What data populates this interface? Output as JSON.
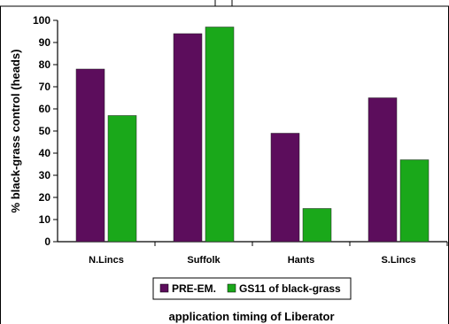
{
  "chart_data": {
    "type": "bar",
    "categories": [
      "N.Lincs",
      "Suffolk",
      "Hants",
      "S.Lincs"
    ],
    "series": [
      {
        "name": "PRE-EM.",
        "values": [
          78,
          94,
          49,
          65
        ],
        "color": "#5c0d5c"
      },
      {
        "name": "GS11 of black-grass",
        "values": [
          57,
          97,
          15,
          37
        ],
        "color": "#1aa81a"
      }
    ],
    "ylabel": "% black-grass control (heads)",
    "xlabel": "application timing of Liberator",
    "ylim": [
      0,
      100
    ],
    "yticks": [
      0,
      10,
      20,
      30,
      40,
      50,
      60,
      70,
      80,
      90,
      100
    ],
    "grid": false,
    "legend": "bottom-center"
  }
}
